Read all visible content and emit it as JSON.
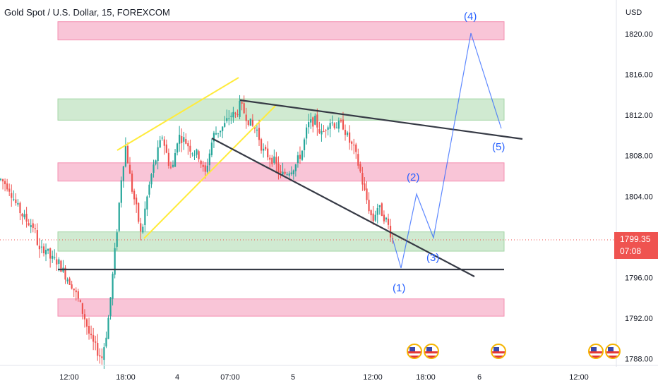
{
  "header": {
    "title": "Gold Spot / U.S. Dollar, 15, FOREXCOM"
  },
  "currency_label": "USD",
  "price_badge": {
    "price": "1799.35",
    "countdown": "07:08",
    "color": "#ef5350"
  },
  "colors": {
    "up": "#26a69a",
    "down": "#ef5350",
    "resistance_zone": "#f8bbd0",
    "support_zone": "#c8e6c9",
    "channel": "#ffeb3b",
    "trendline": "#363a45",
    "wave": "#2962ff",
    "flag_ring": "#f5b400"
  },
  "events": {
    "icon": "us-flag-icon",
    "count": 5
  },
  "chart_data": {
    "type": "candlestick",
    "title": "Gold Spot / U.S. Dollar, 15, FOREXCOM",
    "ylabel": "USD",
    "ylim": [
      1787,
      1822.4
    ],
    "y_ticks": [
      "1820.00",
      "1816.00",
      "1812.00",
      "1808.00",
      "1804.00",
      "1800.00",
      "1796.00",
      "1792.00",
      "1788.00"
    ],
    "x_ticks": [
      "12:00",
      "18:00",
      "4",
      "07:00",
      "5",
      "12:00",
      "18:00",
      "6",
      "12:00"
    ],
    "current_price": 1799.35,
    "zones": [
      {
        "type": "resistance",
        "range": [
          1819.4,
          1821.2
        ]
      },
      {
        "type": "support",
        "range": [
          1811.5,
          1813.6
        ]
      },
      {
        "type": "resistance",
        "range": [
          1805.5,
          1807.3
        ]
      },
      {
        "type": "support",
        "range": [
          1798.6,
          1800.5
        ]
      },
      {
        "type": "resistance",
        "range": [
          1792.2,
          1793.9
        ]
      }
    ],
    "horizontal_line": 1796.15,
    "wave_labels": [
      {
        "label": "(1)",
        "price": 1796.1
      },
      {
        "label": "(2)",
        "price": 1804.5
      },
      {
        "label": "(3)",
        "price": 1799.0
      },
      {
        "label": "(4)",
        "price": 1820.8
      },
      {
        "label": "(5)",
        "price": 1810.7
      }
    ]
  }
}
